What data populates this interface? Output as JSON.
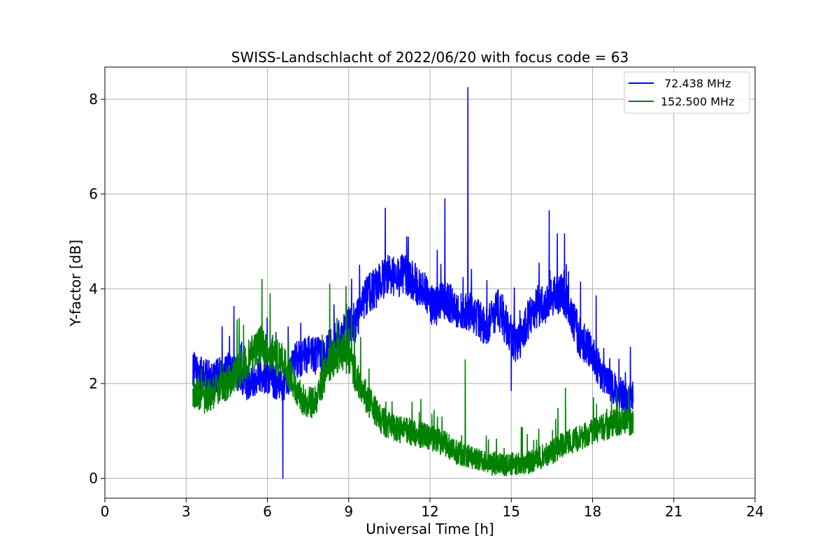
{
  "chart_data": {
    "type": "line",
    "title": "SWISS-Landschlacht of 2022/06/20 with focus code = 63",
    "xlabel": "Universal Time [h]",
    "ylabel": "Y-factor [dB]",
    "xlim": [
      0,
      24
    ],
    "ylim": [
      -0.42,
      8.68
    ],
    "xticks": [
      0,
      3,
      6,
      9,
      12,
      15,
      18,
      21,
      24
    ],
    "xtick_labels": [
      "0",
      "3",
      "6",
      "9",
      "12",
      "15",
      "18",
      "21",
      "24"
    ],
    "yticks": [
      0,
      2,
      4,
      6,
      8
    ],
    "ytick_labels": [
      "0",
      "2",
      "4",
      "6",
      "8"
    ],
    "grid": true,
    "legend_position": "top-right",
    "series": [
      {
        "name": " 72.438 MHz",
        "color": "#0000ff",
        "x": [
          3.25,
          3.5,
          3.75,
          4.0,
          4.25,
          4.5,
          4.75,
          5.0,
          5.25,
          5.5,
          5.75,
          6.0,
          6.25,
          6.5,
          6.75,
          7.0,
          7.25,
          7.5,
          7.75,
          8.0,
          8.25,
          8.5,
          8.75,
          9.0,
          9.25,
          9.5,
          9.75,
          10.0,
          10.25,
          10.5,
          10.75,
          11.0,
          11.25,
          11.5,
          11.75,
          12.0,
          12.25,
          12.5,
          12.75,
          13.0,
          13.25,
          13.5,
          13.75,
          14.0,
          14.25,
          14.5,
          14.75,
          15.0,
          15.25,
          15.5,
          15.75,
          16.0,
          16.25,
          16.5,
          16.75,
          17.0,
          17.25,
          17.5,
          17.75,
          18.0,
          18.25,
          18.5,
          18.75,
          19.0,
          19.25,
          19.5
        ],
        "y": [
          2.3,
          2.2,
          2.15,
          2.1,
          2.2,
          2.3,
          2.25,
          2.2,
          2.0,
          2.1,
          2.2,
          2.15,
          2.05,
          2.0,
          2.0,
          2.5,
          2.55,
          2.6,
          2.6,
          2.55,
          2.7,
          2.9,
          3.0,
          3.2,
          3.3,
          3.7,
          3.9,
          4.0,
          4.2,
          4.3,
          4.2,
          4.3,
          4.2,
          4.1,
          4.0,
          3.7,
          3.6,
          3.8,
          3.7,
          3.6,
          3.5,
          3.5,
          3.4,
          3.2,
          3.3,
          3.6,
          3.3,
          3.0,
          2.8,
          3.2,
          3.5,
          3.6,
          3.7,
          3.8,
          3.9,
          3.8,
          3.4,
          3.0,
          2.8,
          2.6,
          2.3,
          2.0,
          1.9,
          1.8,
          1.7,
          1.7
        ],
        "spikes": [
          [
            4.6,
            3.0
          ],
          [
            6.57,
            0.0
          ],
          [
            9.4,
            4.5
          ],
          [
            10.35,
            5.7
          ],
          [
            12.55,
            5.9
          ],
          [
            13.4,
            8.25
          ],
          [
            15.0,
            1.85
          ],
          [
            16.4,
            5.65
          ]
        ]
      },
      {
        "name": "152.500 MHz",
        "color": "#008000",
        "x": [
          3.25,
          3.5,
          3.75,
          4.0,
          4.25,
          4.5,
          4.75,
          5.0,
          5.25,
          5.5,
          5.75,
          6.0,
          6.25,
          6.5,
          6.75,
          7.0,
          7.25,
          7.5,
          7.75,
          8.0,
          8.25,
          8.5,
          8.75,
          9.0,
          9.25,
          9.5,
          9.75,
          10.0,
          10.25,
          10.5,
          10.75,
          11.0,
          11.25,
          11.5,
          11.75,
          12.0,
          12.25,
          12.5,
          12.75,
          13.0,
          13.25,
          13.5,
          13.75,
          14.0,
          14.25,
          14.5,
          14.75,
          15.0,
          15.25,
          15.5,
          15.75,
          16.0,
          16.25,
          16.5,
          16.75,
          17.0,
          17.25,
          17.5,
          17.75,
          18.0,
          18.25,
          18.5,
          18.75,
          19.0,
          19.25,
          19.5
        ],
        "y": [
          1.8,
          1.75,
          1.7,
          1.8,
          1.9,
          2.0,
          2.1,
          2.3,
          2.5,
          2.7,
          2.8,
          2.7,
          2.6,
          2.5,
          2.3,
          2.0,
          1.7,
          1.6,
          1.6,
          2.0,
          2.4,
          2.6,
          2.7,
          2.5,
          2.2,
          1.9,
          1.6,
          1.4,
          1.2,
          1.1,
          1.05,
          1.0,
          1.0,
          0.95,
          0.9,
          0.85,
          0.8,
          0.75,
          0.65,
          0.55,
          0.5,
          0.45,
          0.4,
          0.35,
          0.3,
          0.3,
          0.28,
          0.3,
          0.3,
          0.32,
          0.35,
          0.4,
          0.5,
          0.55,
          0.65,
          0.75,
          0.8,
          0.85,
          0.9,
          1.0,
          1.05,
          1.1,
          1.15,
          1.2,
          1.2,
          1.15
        ],
        "spikes": [
          [
            5.8,
            4.2
          ],
          [
            6.1,
            3.9
          ],
          [
            8.3,
            4.1
          ],
          [
            8.9,
            4.05
          ],
          [
            13.3,
            2.5
          ],
          [
            17.0,
            1.9
          ],
          [
            18.7,
            1.7
          ]
        ]
      }
    ]
  }
}
